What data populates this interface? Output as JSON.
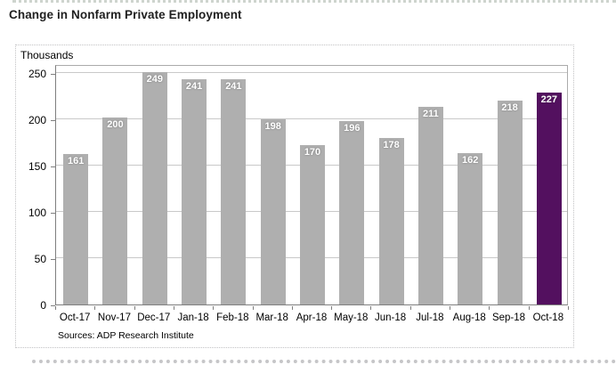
{
  "page": {
    "title": "Change in Nonfarm Private Employment"
  },
  "chart": {
    "units_label": "Thousands",
    "source": "Sources: ADP Research Institute"
  },
  "chart_data": {
    "type": "bar",
    "title": "Change in Nonfarm Private Employment",
    "ylabel": "Thousands",
    "xlabel": "",
    "categories": [
      "Oct-17",
      "Nov-17",
      "Dec-17",
      "Jan-18",
      "Feb-18",
      "Mar-18",
      "Apr-18",
      "May-18",
      "Jun-18",
      "Jul-18",
      "Aug-18",
      "Sep-18",
      "Oct-18"
    ],
    "values": [
      161,
      200,
      249,
      241,
      241,
      198,
      170,
      196,
      178,
      211,
      162,
      218,
      227
    ],
    "ylim": [
      0,
      250
    ],
    "y_ticks": [
      0,
      50,
      100,
      150,
      200,
      250
    ],
    "grid": true,
    "legend": "none",
    "bar_color": "#afafaf",
    "highlight_color": "#53105f",
    "highlight_index": 12,
    "source": "Sources: ADP Research Institute"
  }
}
